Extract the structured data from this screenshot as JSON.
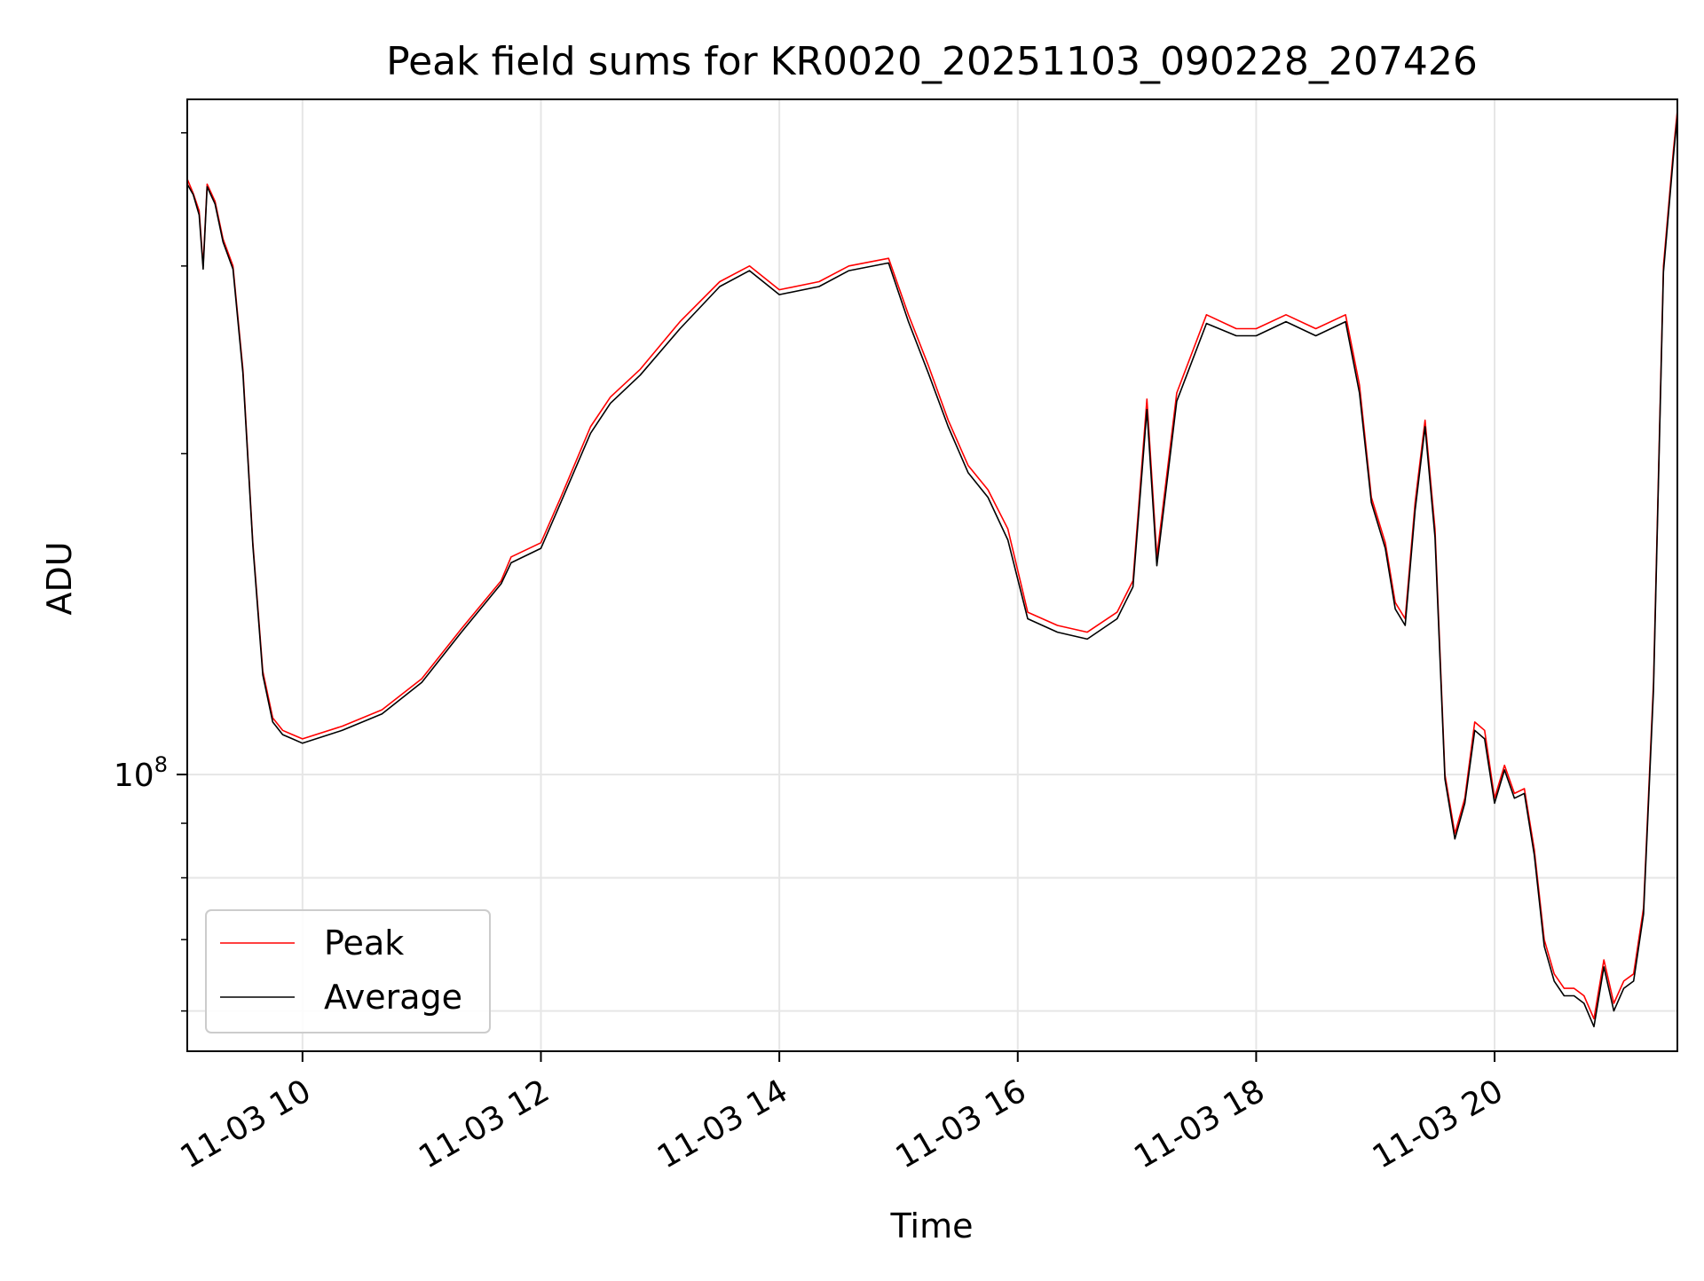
{
  "chart_data": {
    "type": "line",
    "title": "Peak field sums for KR0020_20251103_090228_207426",
    "xlabel": "Time",
    "ylabel": "ADU",
    "x_ticks": [
      "11-03 10",
      "11-03 12",
      "11-03 14",
      "11-03 16",
      "11-03 18",
      "11-03 20"
    ],
    "y_ticks": [
      {
        "base": "10",
        "exp": "8",
        "value": 100000000
      }
    ],
    "y_scale": "log",
    "xlim": [
      "2025-11-03 09:02",
      "2025-11-03 21:32"
    ],
    "ylim": [
      55000000,
      430000000
    ],
    "grid": true,
    "legend_position": "lower-left",
    "colors": {
      "peak": "#ff0000",
      "average": "#000000"
    },
    "series": [
      {
        "name": "Peak",
        "x": [
          "2025-11-03 09:02",
          "2025-11-03 09:05",
          "2025-11-03 09:08",
          "2025-11-03 09:10",
          "2025-11-03 09:12",
          "2025-11-03 09:16",
          "2025-11-03 09:20",
          "2025-11-03 09:25",
          "2025-11-03 09:30",
          "2025-11-03 09:35",
          "2025-11-03 09:40",
          "2025-11-03 09:45",
          "2025-11-03 09:50",
          "2025-11-03 09:55",
          "2025-11-03 10:00",
          "2025-11-03 10:20",
          "2025-11-03 10:40",
          "2025-11-03 11:00",
          "2025-11-03 11:20",
          "2025-11-03 11:40",
          "2025-11-03 11:45",
          "2025-11-03 12:00",
          "2025-11-03 12:10",
          "2025-11-03 12:25",
          "2025-11-03 12:35",
          "2025-11-03 12:50",
          "2025-11-03 13:10",
          "2025-11-03 13:30",
          "2025-11-03 13:45",
          "2025-11-03 14:00",
          "2025-11-03 14:20",
          "2025-11-03 14:35",
          "2025-11-03 14:55",
          "2025-11-03 15:05",
          "2025-11-03 15:15",
          "2025-11-03 15:25",
          "2025-11-03 15:35",
          "2025-11-03 15:45",
          "2025-11-03 15:55",
          "2025-11-03 16:05",
          "2025-11-03 16:20",
          "2025-11-03 16:35",
          "2025-11-03 16:50",
          "2025-11-03 16:58",
          "2025-11-03 17:05",
          "2025-11-03 17:10",
          "2025-11-03 17:20",
          "2025-11-03 17:35",
          "2025-11-03 17:50",
          "2025-11-03 18:00",
          "2025-11-03 18:15",
          "2025-11-03 18:30",
          "2025-11-03 18:45",
          "2025-11-03 18:52",
          "2025-11-03 18:58",
          "2025-11-03 19:05",
          "2025-11-03 19:10",
          "2025-11-03 19:15",
          "2025-11-03 19:20",
          "2025-11-03 19:25",
          "2025-11-03 19:30",
          "2025-11-03 19:35",
          "2025-11-03 19:40",
          "2025-11-03 19:45",
          "2025-11-03 19:50",
          "2025-11-03 19:55",
          "2025-11-03 20:00",
          "2025-11-03 20:05",
          "2025-11-03 20:10",
          "2025-11-03 20:15",
          "2025-11-03 20:20",
          "2025-11-03 20:25",
          "2025-11-03 20:30",
          "2025-11-03 20:35",
          "2025-11-03 20:40",
          "2025-11-03 20:45",
          "2025-11-03 20:50",
          "2025-11-03 20:55",
          "2025-11-03 21:00",
          "2025-11-03 21:05",
          "2025-11-03 21:10",
          "2025-11-03 21:15",
          "2025-11-03 21:20",
          "2025-11-03 21:25",
          "2025-11-03 21:30",
          "2025-11-03 21:32"
        ],
        "values": [
          362000000,
          351000000,
          338000000,
          300000000,
          358000000,
          345000000,
          318000000,
          300000000,
          240000000,
          165000000,
          125000000,
          113000000,
          110000000,
          109000000,
          108000000,
          111000000,
          115000000,
          123000000,
          137000000,
          152000000,
          160000000,
          165000000,
          182000000,
          212000000,
          226000000,
          240000000,
          266000000,
          290000000,
          300000000,
          285000000,
          290000000,
          300000000,
          305000000,
          270000000,
          242000000,
          215000000,
          195000000,
          185000000,
          170000000,
          142000000,
          138000000,
          136000000,
          142000000,
          152000000,
          225000000,
          160000000,
          228000000,
          270000000,
          262000000,
          262000000,
          270000000,
          262000000,
          270000000,
          232000000,
          182000000,
          165000000,
          145000000,
          140000000,
          180000000,
          215000000,
          170000000,
          100000000,
          88000000,
          95000000,
          112000000,
          110000000,
          95000000,
          102000000,
          96000000,
          97000000,
          85000000,
          70000000,
          65000000,
          63000000,
          63000000,
          62000000,
          59000000,
          67000000,
          61000000,
          64000000,
          65000000,
          75000000,
          122000000,
          300000000,
          385000000,
          420000000
        ]
      },
      {
        "name": "Average",
        "x": [
          "2025-11-03 09:02",
          "2025-11-03 09:05",
          "2025-11-03 09:08",
          "2025-11-03 09:10",
          "2025-11-03 09:12",
          "2025-11-03 09:16",
          "2025-11-03 09:20",
          "2025-11-03 09:25",
          "2025-11-03 09:30",
          "2025-11-03 09:35",
          "2025-11-03 09:40",
          "2025-11-03 09:45",
          "2025-11-03 09:50",
          "2025-11-03 09:55",
          "2025-11-03 10:00",
          "2025-11-03 10:20",
          "2025-11-03 10:40",
          "2025-11-03 11:00",
          "2025-11-03 11:20",
          "2025-11-03 11:40",
          "2025-11-03 11:45",
          "2025-11-03 12:00",
          "2025-11-03 12:10",
          "2025-11-03 12:25",
          "2025-11-03 12:35",
          "2025-11-03 12:50",
          "2025-11-03 13:10",
          "2025-11-03 13:30",
          "2025-11-03 13:45",
          "2025-11-03 14:00",
          "2025-11-03 14:20",
          "2025-11-03 14:35",
          "2025-11-03 14:55",
          "2025-11-03 15:05",
          "2025-11-03 15:15",
          "2025-11-03 15:25",
          "2025-11-03 15:35",
          "2025-11-03 15:45",
          "2025-11-03 15:55",
          "2025-11-03 16:05",
          "2025-11-03 16:20",
          "2025-11-03 16:35",
          "2025-11-03 16:50",
          "2025-11-03 16:58",
          "2025-11-03 17:05",
          "2025-11-03 17:10",
          "2025-11-03 17:20",
          "2025-11-03 17:35",
          "2025-11-03 17:50",
          "2025-11-03 18:00",
          "2025-11-03 18:15",
          "2025-11-03 18:30",
          "2025-11-03 18:45",
          "2025-11-03 18:52",
          "2025-11-03 18:58",
          "2025-11-03 19:05",
          "2025-11-03 19:10",
          "2025-11-03 19:15",
          "2025-11-03 19:20",
          "2025-11-03 19:25",
          "2025-11-03 19:30",
          "2025-11-03 19:35",
          "2025-11-03 19:40",
          "2025-11-03 19:45",
          "2025-11-03 19:50",
          "2025-11-03 19:55",
          "2025-11-03 20:00",
          "2025-11-03 20:05",
          "2025-11-03 20:10",
          "2025-11-03 20:15",
          "2025-11-03 20:20",
          "2025-11-03 20:25",
          "2025-11-03 20:30",
          "2025-11-03 20:35",
          "2025-11-03 20:40",
          "2025-11-03 20:45",
          "2025-11-03 20:50",
          "2025-11-03 20:55",
          "2025-11-03 21:00",
          "2025-11-03 21:05",
          "2025-11-03 21:10",
          "2025-11-03 21:15",
          "2025-11-03 21:20",
          "2025-11-03 21:25",
          "2025-11-03 21:30",
          "2025-11-03 21:32"
        ],
        "values": [
          358000000,
          350000000,
          335000000,
          298000000,
          356000000,
          343000000,
          316000000,
          298000000,
          238000000,
          164000000,
          124000000,
          112000000,
          109000000,
          108000000,
          107000000,
          110000000,
          114000000,
          122000000,
          136000000,
          151000000,
          158000000,
          163000000,
          180000000,
          209000000,
          223000000,
          237000000,
          262000000,
          287000000,
          297000000,
          282000000,
          287000000,
          297000000,
          302000000,
          266000000,
          238000000,
          212000000,
          192000000,
          182000000,
          166000000,
          140000000,
          136000000,
          134000000,
          140000000,
          150000000,
          220000000,
          157000000,
          224000000,
          265000000,
          258000000,
          258000000,
          266000000,
          258000000,
          266000000,
          228000000,
          180000000,
          163000000,
          143000000,
          138000000,
          177000000,
          212000000,
          167000000,
          99000000,
          87000000,
          94000000,
          110000000,
          108000000,
          94000000,
          101000000,
          95000000,
          96000000,
          84000000,
          69000000,
          64000000,
          62000000,
          62000000,
          61000000,
          58000000,
          66000000,
          60000000,
          63000000,
          64000000,
          74000000,
          120000000,
          296000000,
          380000000,
          415000000
        ]
      }
    ]
  }
}
